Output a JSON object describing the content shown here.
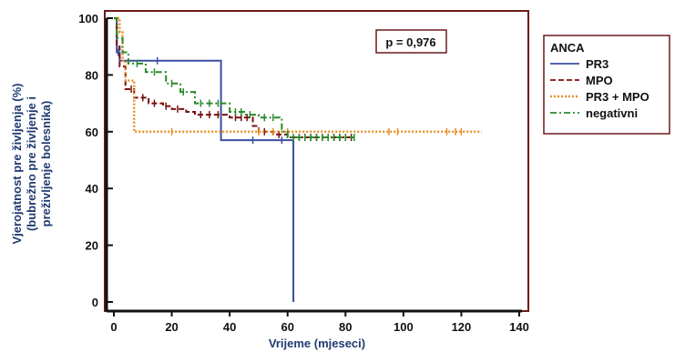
{
  "chart_data": {
    "type": "line",
    "step": true,
    "xlabel": "Vrijeme (mjeseci)",
    "ylabel_lines": [
      "Vjerojatnost pre življenja (%)",
      "(bubrežno pre življenje i",
      "preživljenje bolesnika)"
    ],
    "xlim": [
      0,
      140
    ],
    "ylim": [
      0,
      100
    ],
    "xticks": [
      "0",
      "20",
      "40",
      "60",
      "80",
      "100",
      "120",
      "140"
    ],
    "yticks": [
      "0",
      "20",
      "40",
      "60",
      "80",
      "100"
    ],
    "annotation": "p = 0,976",
    "legend_title": "ANCA",
    "legend_position": "right, outside plot",
    "series": [
      {
        "name": "PR3",
        "color": "#3a4fa0",
        "dash": "solid",
        "x": [
          0,
          1,
          2,
          37,
          62
        ],
        "y": [
          100,
          88,
          85,
          57,
          0
        ],
        "censored_x": [
          1.5,
          15,
          48,
          58
        ]
      },
      {
        "name": "MPO",
        "color": "#7a1010",
        "dash": "dashed",
        "x": [
          0,
          1,
          2,
          4,
          7,
          12,
          17,
          20,
          25,
          28,
          40,
          48,
          50,
          55,
          60,
          62
        ],
        "y": [
          100,
          90,
          83,
          75,
          72,
          70,
          69,
          68,
          67,
          66,
          65,
          62,
          60,
          59,
          58,
          58
        ],
        "x_end": 82,
        "censored_x": [
          6,
          10,
          14,
          18,
          22,
          30,
          33,
          36,
          42,
          44,
          46,
          52,
          57,
          64,
          66,
          68,
          70,
          72,
          74,
          76,
          78,
          80,
          82
        ]
      },
      {
        "name": "PR3 + MPO",
        "color": "#e8902a",
        "dash": "dotted",
        "x": [
          0,
          2,
          3,
          4,
          7
        ],
        "y": [
          100,
          95,
          85,
          78,
          60
        ],
        "x_end": 127,
        "censored_x": [
          20,
          50,
          55,
          60,
          95,
          98,
          115,
          118,
          120
        ]
      },
      {
        "name": "negativni",
        "color": "#2a8a2a",
        "dash": "dashdot",
        "x": [
          0,
          1,
          3,
          5,
          11,
          18,
          23,
          28,
          40,
          45,
          50,
          58,
          60
        ],
        "y": [
          100,
          93,
          88,
          84,
          81,
          77,
          74,
          70,
          67,
          66,
          65,
          60,
          58
        ],
        "x_end": 83,
        "censored_x": [
          8,
          14,
          20,
          24,
          30,
          33,
          36,
          42,
          44,
          47,
          52,
          55,
          62,
          64,
          66,
          68,
          70,
          72,
          74,
          76,
          78,
          80,
          83
        ]
      }
    ]
  }
}
